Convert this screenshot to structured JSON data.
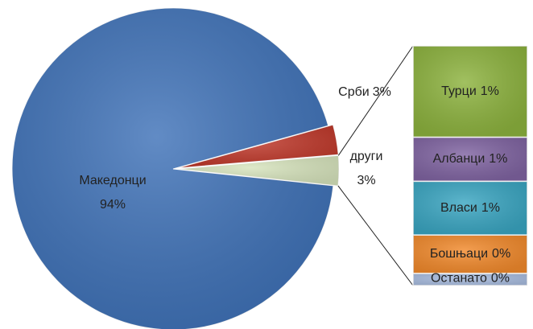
{
  "chart_data": [
    {
      "type": "pie",
      "categories": [
        "други",
        "Срби",
        "Македонци"
      ],
      "values": [
        3,
        3,
        94
      ],
      "value_labels": [
        "3%",
        "3%",
        "94%"
      ],
      "colors": [
        "#d7e4bd",
        "#c0392b",
        "#3f72b8"
      ]
    },
    {
      "type": "bar",
      "categories": [
        "Турци",
        "Албанци",
        "Власи",
        "Бошњаци",
        "Останато"
      ],
      "values": [
        1.14,
        0.55,
        0.67,
        0.48,
        0.15
      ],
      "value_labels": [
        "1%",
        "1%",
        "1%",
        "0%",
        "0%"
      ],
      "colors": [
        "#8db33e",
        "#8064a2",
        "#3aa6c2",
        "#f28a2c",
        "#a9bde0"
      ]
    }
  ]
}
